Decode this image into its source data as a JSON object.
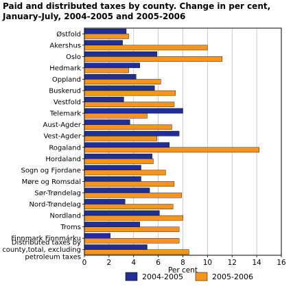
{
  "chart_data": {
    "type": "bar",
    "orientation": "horizontal",
    "title": "Paid and distributed taxes by county. Change in per cent, January-July, 2004-2005 and 2005-2006",
    "xlabel": "Per cent",
    "ylabel": "",
    "xlim": [
      0,
      16
    ],
    "xticks": [
      0,
      2,
      4,
      6,
      8,
      10,
      12,
      14,
      16
    ],
    "grid": true,
    "legend_position": "bottom",
    "categories": [
      "Østfold",
      "Akershus",
      "Oslo",
      "Hedmark",
      "Oppland",
      "Buskerud",
      "Vestfold",
      "Telemark",
      "Aust-Agder",
      "Vest-Agder",
      "Rogaland",
      "Hordaland",
      "Sogn og Fjordane",
      "Møre og Romsdal",
      "Sør-Trøndelag",
      "Nord-Trøndelag",
      "Nordland",
      "Troms",
      "Finnmark Finnmárku",
      "Distributed taxes by county,total, excluding petroleum taxes"
    ],
    "category_lines": [
      [
        "Østfold"
      ],
      [
        "Akershus"
      ],
      [
        "Oslo"
      ],
      [
        "Hedmark"
      ],
      [
        "Oppland"
      ],
      [
        "Buskerud"
      ],
      [
        "Vestfold"
      ],
      [
        "Telemark"
      ],
      [
        "Aust-Agder"
      ],
      [
        "Vest-Agder"
      ],
      [
        "Rogaland"
      ],
      [
        "Hordaland"
      ],
      [
        "Sogn og Fjordane"
      ],
      [
        "Møre og Romsdal"
      ],
      [
        "Sør-Trøndelag"
      ],
      [
        "Nord-Trøndelag"
      ],
      [
        "Nordland"
      ],
      [
        "Troms"
      ],
      [
        "Finnmark Finnmárku"
      ],
      [
        "Distributed taxes by",
        "county,total, excluding",
        "petroleum taxes"
      ]
    ],
    "series": [
      {
        "name": "2004-2005",
        "color": "#1f2f96",
        "values": [
          3.4,
          3.1,
          5.9,
          4.5,
          4.2,
          5.7,
          3.2,
          8.0,
          3.7,
          7.7,
          6.9,
          5.5,
          4.6,
          4.6,
          5.3,
          3.3,
          6.1,
          4.5,
          2.1,
          5.1
        ]
      },
      {
        "name": "2005-2006",
        "color": "#f7941d",
        "values": [
          3.6,
          10.0,
          11.2,
          3.6,
          6.2,
          7.4,
          7.3,
          5.1,
          7.1,
          5.9,
          14.2,
          5.6,
          6.6,
          7.3,
          7.9,
          7.2,
          8.0,
          7.7,
          7.7,
          8.5
        ]
      }
    ]
  },
  "colors": {
    "plot_border": "#000000",
    "grid": "#bfbfbf"
  }
}
